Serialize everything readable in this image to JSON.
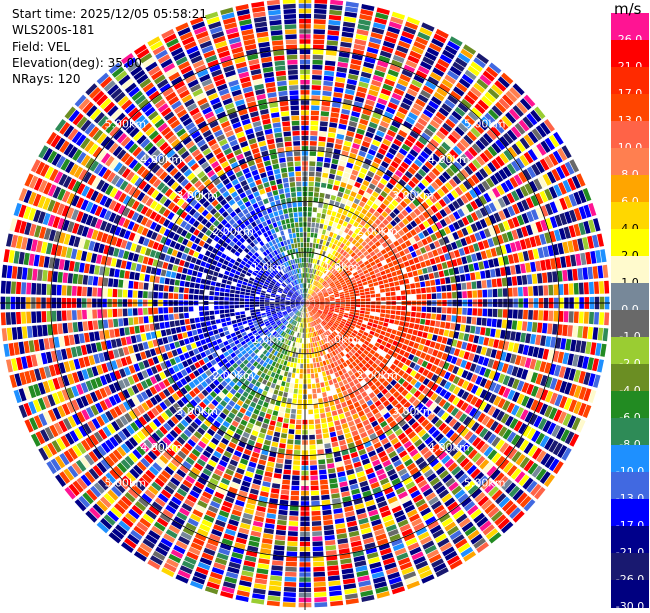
{
  "info": {
    "start_time": "Start time: 2025/12/05 05:58:21",
    "station": "WLS200s-181",
    "field": "Field: VEL",
    "elevation": "Elevation(deg): 35.00",
    "nrays": "NRays: 120"
  },
  "colorbar": {
    "title": "m/s",
    "levels": [
      {
        "label": "26.0",
        "color": "#ff1493"
      },
      {
        "label": "21.0",
        "color": "#ff0000"
      },
      {
        "label": "17.0",
        "color": "#ff2a00"
      },
      {
        "label": "13.0",
        "color": "#ff4500"
      },
      {
        "label": "10.0",
        "color": "#ff6347"
      },
      {
        "label": "8.0",
        "color": "#ff7f50"
      },
      {
        "label": "6.0",
        "color": "#ffa500"
      },
      {
        "label": "4.0",
        "color": "#ffd700"
      },
      {
        "label": "2.0",
        "color": "#ffff00"
      },
      {
        "label": "1.0",
        "color": "#fffacd"
      },
      {
        "label": "0.0",
        "color": "#778899"
      },
      {
        "label": "-1.0",
        "color": "#696969"
      },
      {
        "label": "-2.0",
        "color": "#9acd32"
      },
      {
        "label": "-4.0",
        "color": "#6b8e23"
      },
      {
        "label": "-6.0",
        "color": "#228b22"
      },
      {
        "label": "-8.0",
        "color": "#2e8b57"
      },
      {
        "label": "-10.0",
        "color": "#1e90ff"
      },
      {
        "label": "-13.0",
        "color": "#4169e1"
      },
      {
        "label": "-17.0",
        "color": "#0000ff"
      },
      {
        "label": "-21.0",
        "color": "#00008b"
      },
      {
        "label": "-26.0",
        "color": "#191970"
      },
      {
        "label": "-30.0",
        "color": "#000080"
      }
    ]
  },
  "chart_data": {
    "type": "heatmap",
    "subtype": "radar-ppi",
    "field": "VEL",
    "unit": "m/s",
    "nrays": 120,
    "elevation_deg": 35.0,
    "range_rings_km": [
      1.0,
      2.0,
      3.0,
      4.0,
      5.0
    ],
    "ring_labels": {
      "1.0": "1.0km",
      "2.0": "2.00km",
      "3.0": "3.00km",
      "4.0": "4.00km",
      "5.0": "5.00km"
    },
    "ring_label_azimuths_deg": [
      45,
      135,
      225,
      315
    ],
    "max_range_km": 6.0,
    "gates_per_ray": 60,
    "notes": "Near-range (< ~2.5km) shows coherent velocities: negative (blue/green) to the west, positive (red/orange/yellow) to the east/south; far range is noisy."
  }
}
